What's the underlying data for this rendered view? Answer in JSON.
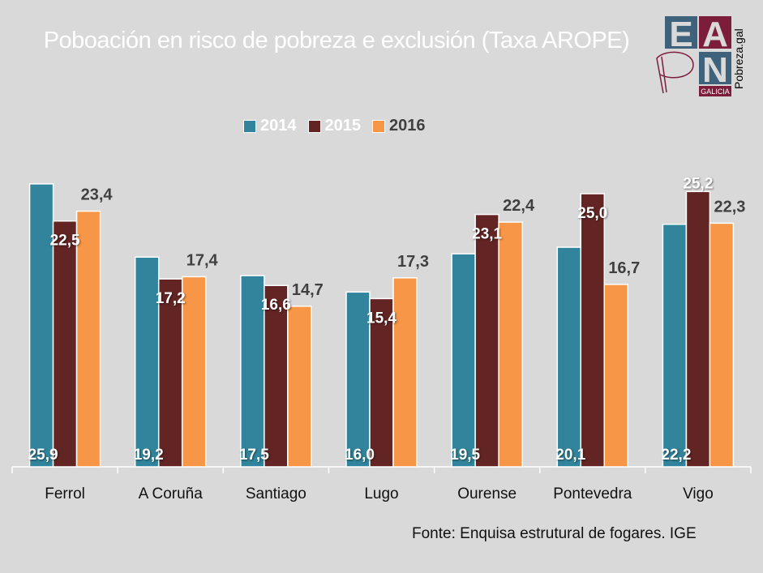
{
  "title": "Poboación en risco de pobreza e exclusión (Taxa AROPE)",
  "logo": {
    "letters": [
      "E",
      "A",
      "P",
      "N"
    ],
    "badge": "GALICIA",
    "site": "Pobreza.gal",
    "colors": {
      "blue": "#3e617c",
      "maroon": "#7c1d3c"
    }
  },
  "source": "Fonte: Enquisa estrutural de fogares. IGE",
  "chart_data": {
    "type": "bar",
    "title": "Poboación en risco de pobreza e exclusión (Taxa AROPE)",
    "xlabel": "",
    "ylabel": "",
    "categories": [
      "Ferrol",
      "A Coruña",
      "Santiago",
      "Lugo",
      "Ourense",
      "Pontevedra",
      "Vigo"
    ],
    "series": [
      {
        "name": "2014",
        "color": "#31849b",
        "values": [
          25.9,
          19.2,
          17.5,
          16.0,
          19.5,
          20.1,
          22.2
        ],
        "labels": [
          "25,9",
          "19,2",
          "17,5",
          "16,0",
          "19,5",
          "20,1",
          "22,2"
        ]
      },
      {
        "name": "2015",
        "color": "#632523",
        "values": [
          22.5,
          17.2,
          16.6,
          15.4,
          23.1,
          25.0,
          25.2
        ],
        "labels": [
          "22,5",
          "17,2",
          "16,6",
          "15,4",
          "23,1",
          "25,0",
          "25,2"
        ]
      },
      {
        "name": "2016",
        "color": "#f79646",
        "values": [
          23.4,
          17.4,
          14.7,
          17.3,
          22.4,
          16.7,
          22.3
        ],
        "labels": [
          "23,4",
          "17,4",
          "14,7",
          "17,3",
          "22,4",
          "16,7",
          "22,3"
        ]
      }
    ],
    "ylim": [
      0,
      26
    ],
    "grid": false,
    "legend": "top-center"
  }
}
